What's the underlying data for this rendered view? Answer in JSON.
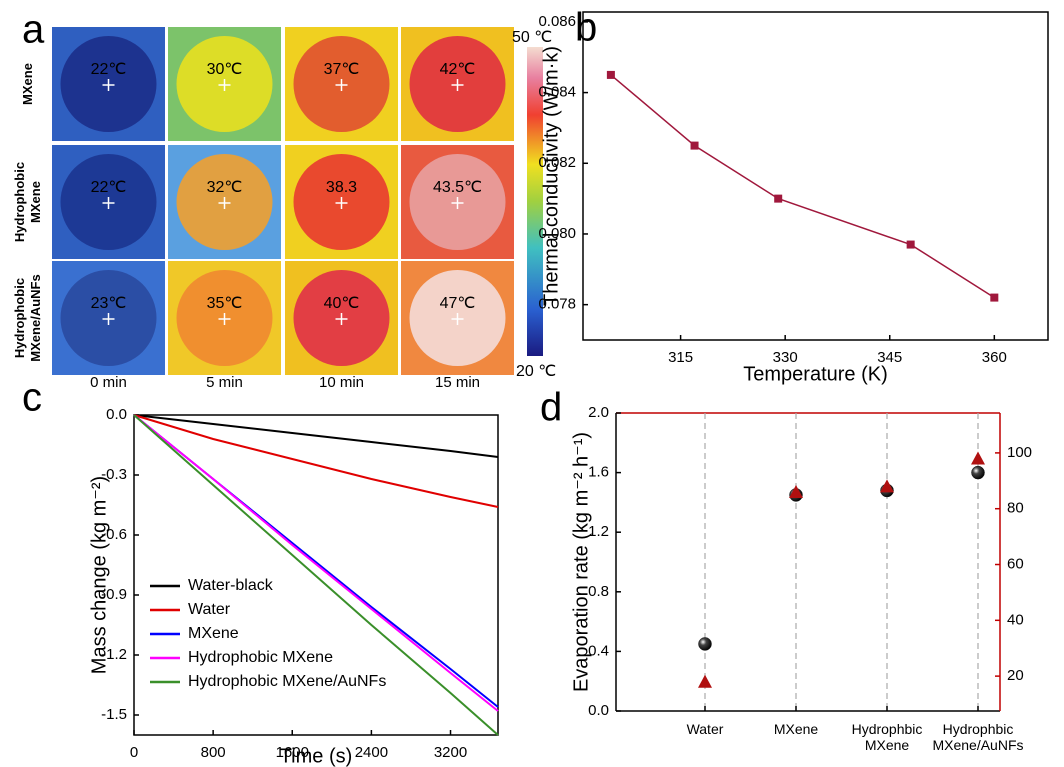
{
  "panel_labels": [
    "a",
    "b",
    "c",
    "d"
  ],
  "thermal": {
    "row_labels": [
      "MXene",
      "Hydrophobic MXene",
      "Hydrophobic MXene/AuNFs"
    ],
    "col_labels": [
      "0 min",
      "5 min",
      "10 min",
      "15 min"
    ],
    "temps": [
      [
        "22℃",
        "30℃",
        "37℃",
        "42℃"
      ],
      [
        "22℃",
        "32℃",
        "38.3",
        "43.5℃"
      ],
      [
        "23℃",
        "35℃",
        "40℃",
        "47℃"
      ]
    ],
    "cells": [
      [
        {
          "bg": "#2f5fc0",
          "spot": "#1c2f8a"
        },
        {
          "bg": "#7cc36a",
          "spot": "#e8e020"
        },
        {
          "bg": "#f0d020",
          "spot": "#e05030"
        },
        {
          "bg": "#f0c020",
          "spot": "#e03040"
        }
      ],
      [
        {
          "bg": "#2f5fc0",
          "spot": "#1c3590"
        },
        {
          "bg": "#5aa0e0",
          "spot": "#f0a030"
        },
        {
          "bg": "#f0d020",
          "spot": "#e83a30"
        },
        {
          "bg": "#e85a40",
          "spot": "#e8a0a0"
        }
      ],
      [
        {
          "bg": "#3a70d0",
          "spot": "#2a4aa0"
        },
        {
          "bg": "#f0c828",
          "spot": "#f08830"
        },
        {
          "bg": "#f0c020",
          "spot": "#e03048"
        },
        {
          "bg": "#f08840",
          "spot": "#f4dcd8"
        }
      ]
    ],
    "colorbar_labels": [
      "50 ℃",
      "20 ℃"
    ]
  },
  "chart_data": [
    {
      "type": "line",
      "xlabel": "Temperature (K)",
      "ylabel": "Thermal conductivity (W/m·k)",
      "x": [
        305,
        317,
        329,
        348,
        360
      ],
      "values": [
        0.0845,
        0.0825,
        0.081,
        0.0797,
        0.0782
      ],
      "color": "#a0183c",
      "xlim": [
        301,
        367.7
      ],
      "xticks": [
        315,
        330,
        345,
        360
      ],
      "ylim": [
        0.077,
        0.08628
      ],
      "yticks": [
        0.078,
        {
          "value": 0.08,
          "label": "0.080"
        },
        0.082,
        0.084,
        0.086
      ]
    },
    {
      "type": "line",
      "xlabel": "Time (s)",
      "ylabel": "Mass change (kg m⁻²)",
      "x": [
        0,
        800,
        1600,
        2400,
        3200,
        3680
      ],
      "series": [
        {
          "name": "Water-black",
          "color": "#000000",
          "values": [
            0,
            -0.045,
            -0.09,
            -0.135,
            -0.18,
            -0.21
          ]
        },
        {
          "name": "Water",
          "color": "#e00000",
          "values": [
            0,
            -0.12,
            -0.22,
            -0.32,
            -0.41,
            -0.46
          ]
        },
        {
          "name": "MXene",
          "color": "#0000ff",
          "values": [
            0,
            -0.32,
            -0.64,
            -0.96,
            -1.27,
            -1.46
          ]
        },
        {
          "name": "Hydrophobic MXene",
          "color": "#ff00ff",
          "values": [
            0,
            -0.32,
            -0.65,
            -0.97,
            -1.29,
            -1.48
          ]
        },
        {
          "name": "Hydrophobic MXene/AuNFs",
          "color": "#3a8f2a",
          "values": [
            0,
            -0.35,
            -0.7,
            -1.05,
            -1.39,
            -1.6
          ]
        }
      ],
      "xlim": [
        0,
        3680
      ],
      "xticks": [
        0,
        800,
        1600,
        2400,
        3200
      ],
      "ylim": [
        -1.6,
        0
      ],
      "yticks": [
        {
          "value": 0,
          "label": "0.0"
        },
        -0.3,
        -0.6,
        -0.9,
        -1.2,
        -1.5
      ]
    },
    {
      "type": "scatter",
      "ylabel": "Evaporation rate (kg m⁻² h⁻¹)",
      "categories": [
        "Water",
        "MXene",
        "Hydrophbic MXene",
        "Hydrophbic MXene/AuNFs"
      ],
      "series": [
        {
          "color": "#111111",
          "values": [
            0.45,
            1.45,
            1.48,
            1.6
          ]
        },
        {
          "color": "#b01010",
          "values": [
            18,
            86,
            88,
            98
          ],
          "axis": "y2"
        }
      ],
      "ylim": [
        0,
        2
      ],
      "yticks": [
        {
          "value": 0,
          "label": "0.0"
        },
        0.4,
        0.8,
        1.2,
        1.6,
        {
          "value": 2,
          "label": "2.0"
        }
      ],
      "y2lim": [
        7.5,
        114.3
      ],
      "y2ticks": [
        20,
        40,
        60,
        80,
        100
      ],
      "y2color": "#c00000"
    }
  ]
}
